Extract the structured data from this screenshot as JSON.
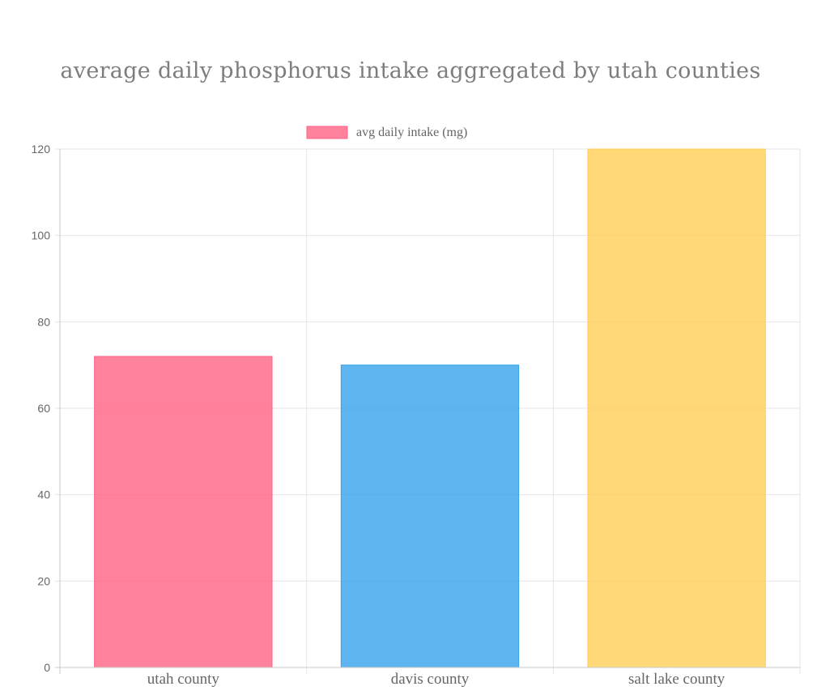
{
  "chart_data": {
    "type": "bar",
    "title": "average daily phosphorus intake aggregated by utah counties",
    "categories": [
      "utah county",
      "davis county",
      "salt lake county"
    ],
    "series": [
      {
        "name": "avg daily intake (mg)",
        "values": [
          72,
          70,
          120
        ]
      }
    ],
    "bar_colors": [
      {
        "fill": "#ff6384",
        "stroke": "#ff6384"
      },
      {
        "fill": "#36a2eb",
        "stroke": "#36a2eb"
      },
      {
        "fill": "#ffce56",
        "stroke": "#ffce56"
      }
    ],
    "ylim": [
      0,
      120
    ],
    "y_ticks": [
      "0",
      "20",
      "40",
      "60",
      "80",
      "100",
      "120"
    ],
    "grid": true,
    "legend_position": "top"
  }
}
